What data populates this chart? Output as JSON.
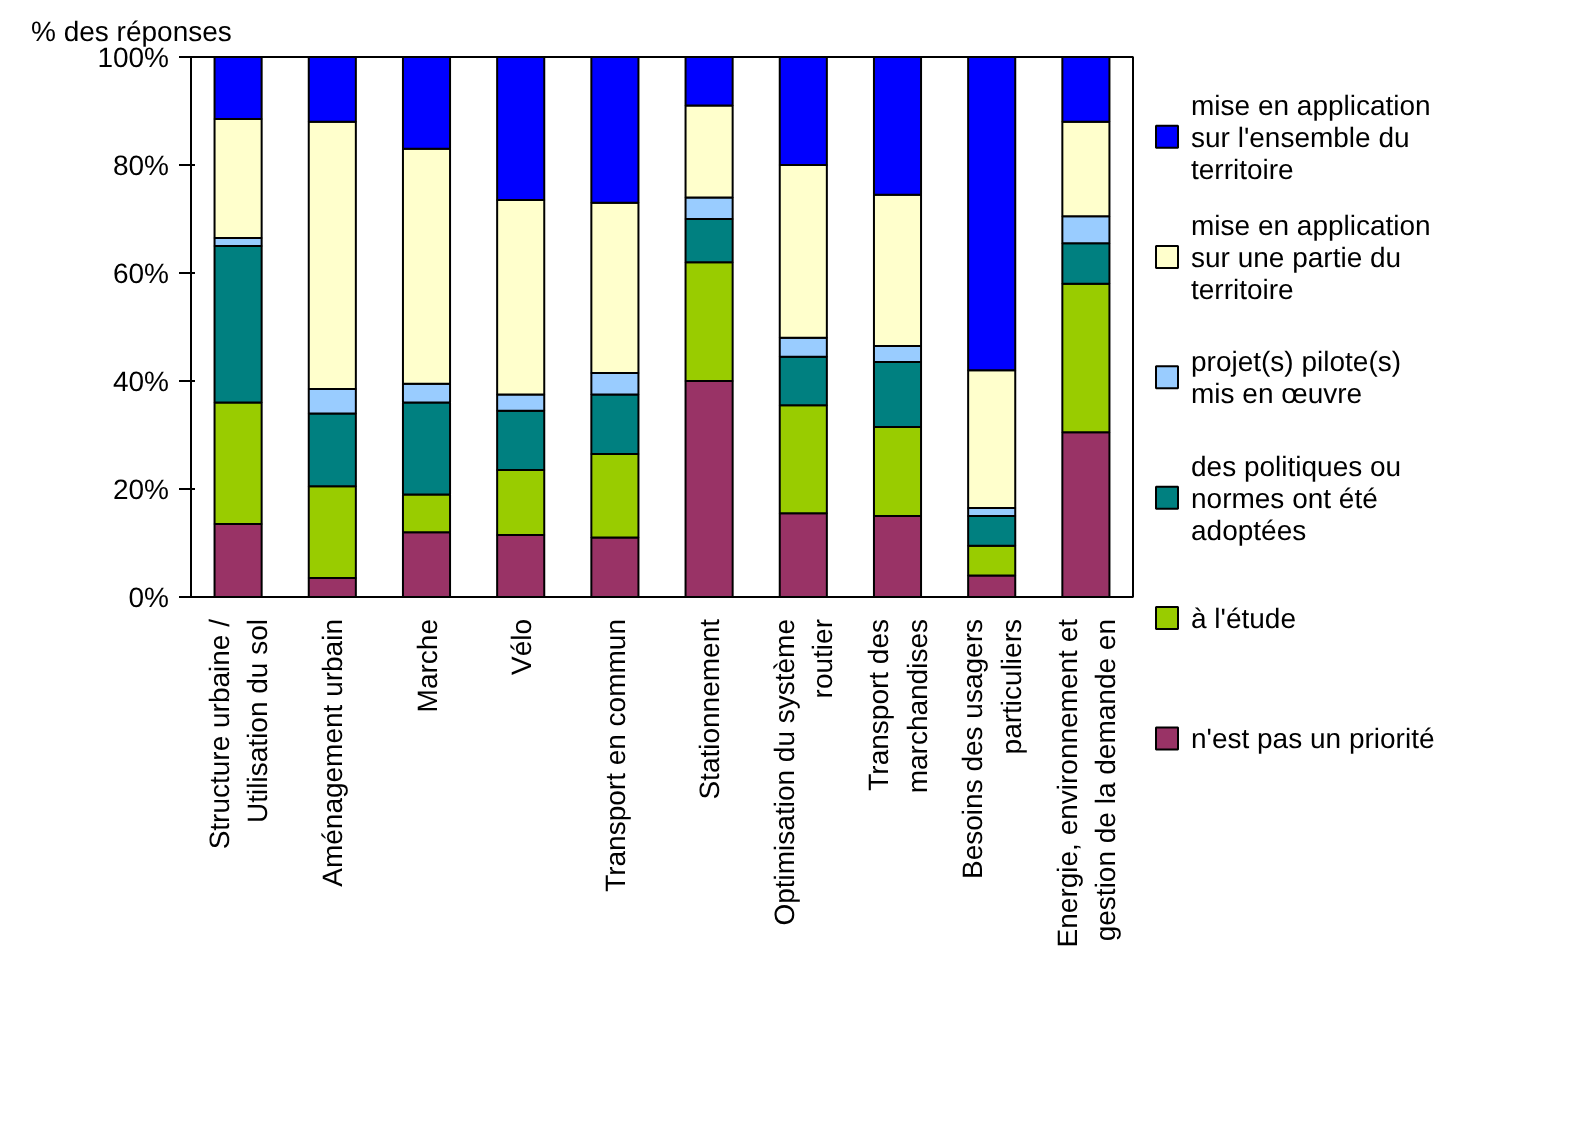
{
  "chart_data": {
    "type": "bar",
    "stacked": true,
    "ylabel": "% des réponses",
    "categories": [
      "Structure urbaine / Utilisation du sol",
      "Aménagement urbain",
      "Marche",
      "Vélo",
      "Transport en commun",
      "Stationnement",
      "Optimisation du système routier",
      "Transport des marchandises",
      "Besoins des usagers particuliers",
      "Energie, environnement et gestion de la demande en"
    ],
    "series": [
      {
        "name": "n'est pas un priorité",
        "color": "#993366",
        "values": [
          13.5,
          3.5,
          12,
          11.5,
          11,
          40,
          15.5,
          15,
          4,
          30.5
        ]
      },
      {
        "name": "à l'étude",
        "color": "#99cc00",
        "values": [
          22.5,
          17,
          7,
          12,
          15.5,
          22,
          20,
          16.5,
          5.5,
          27.5
        ]
      },
      {
        "name": "des politiques ou normes ont été adoptées",
        "color": "#008080",
        "values": [
          29,
          13.5,
          17,
          11,
          11,
          8,
          9,
          12,
          5.5,
          7.5
        ]
      },
      {
        "name": "projet(s) pilote(s) mis en œuvre",
        "color": "#99ccff",
        "values": [
          1.5,
          4.5,
          3.5,
          3,
          4,
          4,
          3.5,
          3,
          1.5,
          5
        ]
      },
      {
        "name": "mise en application sur une partie du territoire",
        "color": "#ffffcc",
        "values": [
          22,
          49.5,
          43.5,
          36,
          31.5,
          17,
          32,
          28,
          25.5,
          17.5
        ]
      },
      {
        "name": "mise en application sur l'ensemble du territoire",
        "color": "#0000ff",
        "values": [
          11.5,
          12,
          17,
          26.5,
          27,
          9,
          20,
          25.5,
          58,
          12
        ]
      }
    ],
    "ylim": [
      0,
      100
    ],
    "yticks": [
      {
        "value": 0,
        "label": "0%"
      },
      {
        "value": 20,
        "label": "20%"
      },
      {
        "value": 40,
        "label": "40%"
      },
      {
        "value": 60,
        "label": "60%"
      },
      {
        "value": 80,
        "label": "80%"
      },
      {
        "value": 100,
        "label": "100%"
      }
    ],
    "grid": false,
    "legend": "right"
  }
}
